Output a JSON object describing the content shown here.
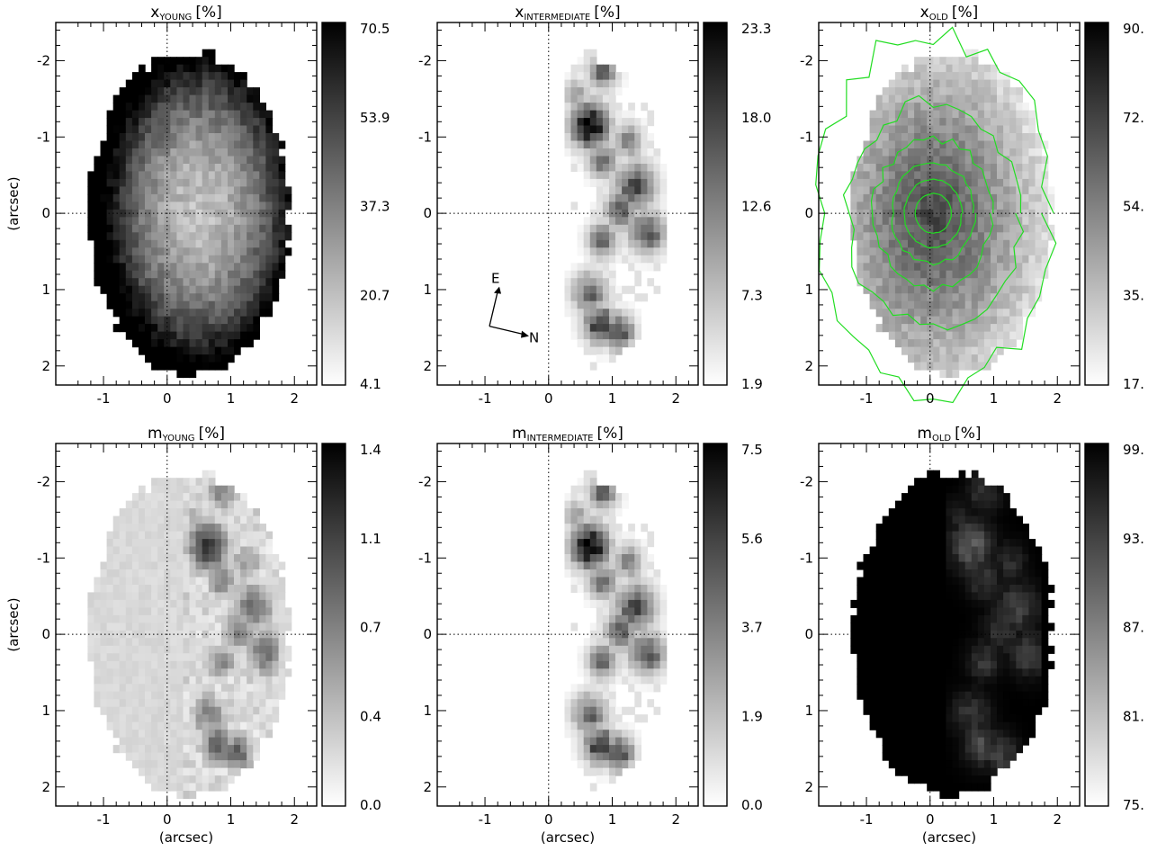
{
  "chart_data": [
    {
      "type": "heatmap",
      "title": {
        "base": "x",
        "sub": "YOUNG",
        "unit": "[%]"
      },
      "colorbar": {
        "labels": [
          "70.5",
          "53.9",
          "37.3",
          "20.7",
          "4.1"
        ],
        "range": [
          4.1,
          70.5
        ]
      },
      "xticks": [
        "-1",
        "0",
        "1",
        "2"
      ],
      "yticks": [
        "-2",
        "-1",
        "0",
        "1",
        "2"
      ],
      "xlabel": "",
      "ylabel": "(arcsec)",
      "xlim": [
        -1.75,
        2.35
      ],
      "ylim": [
        -2.5,
        2.25
      ],
      "pattern": "young"
    },
    {
      "type": "heatmap",
      "title": {
        "base": "x",
        "sub": "INTERMEDIATE",
        "unit": "[%]"
      },
      "colorbar": {
        "labels": [
          "23.3",
          "18.0",
          "12.6",
          "7.3",
          "1.9"
        ],
        "range": [
          1.9,
          23.3
        ]
      },
      "xticks": [
        "-1",
        "0",
        "1",
        "2"
      ],
      "yticks": [
        "-2",
        "-1",
        "0",
        "1",
        "2"
      ],
      "xlabel": "",
      "ylabel": "",
      "xlim": [
        -1.75,
        2.35
      ],
      "ylim": [
        -2.5,
        2.25
      ],
      "pattern": "intermediate",
      "compass": {
        "e": "E",
        "n": "N"
      }
    },
    {
      "type": "heatmap",
      "title": {
        "base": "x",
        "sub": "OLD",
        "unit": "[%]"
      },
      "colorbar": {
        "labels": [
          "90.",
          "72.",
          "54.",
          "35.",
          "17."
        ],
        "range": [
          17,
          90
        ]
      },
      "xticks": [
        "-1",
        "0",
        "1",
        "2"
      ],
      "yticks": [
        "-2",
        "-1",
        "0",
        "1",
        "2"
      ],
      "xlabel": "",
      "ylabel": "",
      "xlim": [
        -1.75,
        2.35
      ],
      "ylim": [
        -2.5,
        2.25
      ],
      "pattern": "old_x",
      "contours": true,
      "contour_color": "#22dd22"
    },
    {
      "type": "heatmap",
      "title": {
        "base": "m",
        "sub": "YOUNG",
        "unit": "[%]"
      },
      "colorbar": {
        "labels": [
          "1.4",
          "1.1",
          "0.7",
          "0.4",
          "0.0"
        ],
        "range": [
          0.0,
          1.4
        ]
      },
      "xticks": [
        "-1",
        "0",
        "1",
        "2"
      ],
      "yticks": [
        "-2",
        "-1",
        "0",
        "1",
        "2"
      ],
      "xlabel": "(arcsec)",
      "ylabel": "(arcsec)",
      "xlim": [
        -1.75,
        2.35
      ],
      "ylim": [
        -2.5,
        2.25
      ],
      "pattern": "m_young"
    },
    {
      "type": "heatmap",
      "title": {
        "base": "m",
        "sub": "INTERMEDIATE",
        "unit": "[%]"
      },
      "colorbar": {
        "labels": [
          "7.5",
          "5.6",
          "3.7",
          "1.9",
          "0.0"
        ],
        "range": [
          0.0,
          7.5
        ]
      },
      "xticks": [
        "-1",
        "0",
        "1",
        "2"
      ],
      "yticks": [
        "-2",
        "-1",
        "0",
        "1",
        "2"
      ],
      "xlabel": "(arcsec)",
      "ylabel": "",
      "xlim": [
        -1.75,
        2.35
      ],
      "ylim": [
        -2.5,
        2.25
      ],
      "pattern": "m_intermediate"
    },
    {
      "type": "heatmap",
      "title": {
        "base": "m",
        "sub": "OLD",
        "unit": "[%]"
      },
      "colorbar": {
        "labels": [
          "99.",
          "93.",
          "87.",
          "81.",
          "75."
        ],
        "range": [
          75,
          99
        ]
      },
      "xticks": [
        "-1",
        "0",
        "1",
        "2"
      ],
      "yticks": [
        "-2",
        "-1",
        "0",
        "1",
        "2"
      ],
      "xlabel": "(arcsec)",
      "ylabel": "",
      "xlim": [
        -1.75,
        2.35
      ],
      "ylim": [
        -2.5,
        2.25
      ],
      "pattern": "m_old"
    }
  ]
}
